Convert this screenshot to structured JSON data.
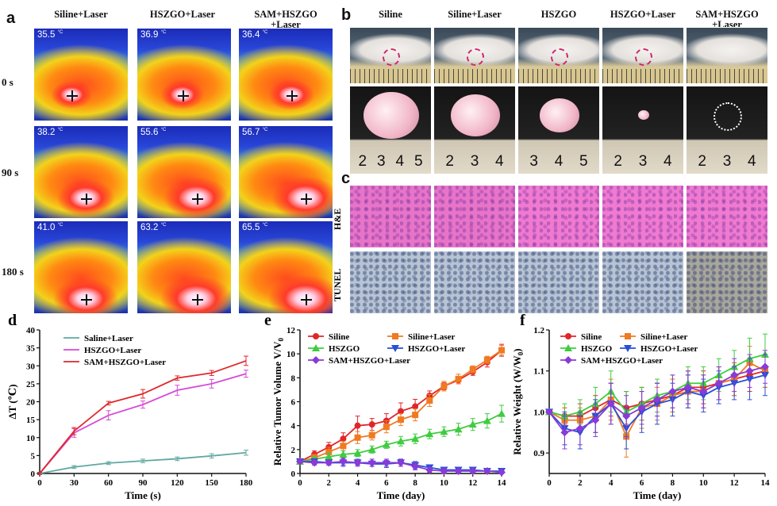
{
  "panel_a": {
    "letter": "a",
    "columns": [
      "Siline+Laser",
      "HSZGO+Laser",
      "SAM+HSZGO +Laser"
    ],
    "rows": [
      "0 s",
      "90 s",
      "180 s"
    ],
    "temps": [
      [
        "35.5",
        "36.9",
        "36.4"
      ],
      [
        "38.2",
        "55.6",
        "56.7"
      ],
      [
        "41.0",
        "63.2",
        "65.5"
      ]
    ],
    "unit": "°C"
  },
  "panel_b": {
    "letter": "b",
    "columns": [
      "Siline",
      "Siline+Laser",
      "HSZGO",
      "HSZGO+Laser",
      "SAM+HSZGO +Laser"
    ],
    "ruler_marks": [
      [
        "2",
        "3",
        "4",
        "5"
      ],
      [
        "2",
        "3",
        "4"
      ],
      [
        "3",
        "4",
        "5"
      ],
      [
        "2",
        "3",
        "4"
      ],
      [
        "2",
        "3",
        "4"
      ]
    ]
  },
  "panel_c": {
    "letter": "c",
    "rows": [
      "H&E",
      "TUNEL"
    ]
  },
  "chart_data": [
    {
      "panel": "d",
      "type": "line",
      "xlabel": "Time (s)",
      "ylabel": "ΔT (℃)",
      "x": [
        0,
        30,
        60,
        90,
        120,
        150,
        180
      ],
      "xticks": [
        "0",
        "30",
        "60",
        "90",
        "120",
        "150",
        "180"
      ],
      "yticks": [
        "0",
        "5",
        "10",
        "15",
        "20",
        "25",
        "30",
        "35",
        "40"
      ],
      "xlim": [
        0,
        180
      ],
      "ylim": [
        0,
        40
      ],
      "series": [
        {
          "name": "Saline+Laser",
          "color": "#5fa8a0",
          "values": [
            0,
            1.8,
            2.9,
            3.5,
            4.1,
            4.9,
            5.8
          ],
          "err": [
            0.2,
            0.4,
            0.4,
            0.5,
            0.5,
            0.6,
            0.7
          ]
        },
        {
          "name": "HSZGO+Laser",
          "color": "#d64ad6",
          "values": [
            0,
            11.3,
            16.2,
            19.2,
            23.2,
            25.0,
            27.8
          ],
          "err": [
            0.3,
            1.2,
            1.3,
            1.0,
            1.4,
            1.2,
            1.0
          ]
        },
        {
          "name": "SAM+HSZGO+Laser",
          "color": "#e0262a",
          "values": [
            0,
            11.8,
            19.6,
            22.2,
            26.6,
            28.0,
            31.4
          ],
          "err": [
            0.3,
            1.0,
            0.5,
            1.2,
            0.6,
            0.7,
            1.3
          ]
        }
      ]
    },
    {
      "panel": "e",
      "type": "line",
      "xlabel": "Time (day)",
      "ylabel": "Relative Tumor Volume V/V",
      "ylabel_sub": "0",
      "x": [
        0,
        1,
        2,
        3,
        4,
        5,
        6,
        7,
        8,
        9,
        10,
        11,
        12,
        13,
        14
      ],
      "xticks": [
        "0",
        "2",
        "4",
        "6",
        "8",
        "10",
        "12",
        "14"
      ],
      "yticks": [
        "0",
        "2",
        "4",
        "6",
        "8",
        "10",
        "12"
      ],
      "xlim": [
        0,
        14
      ],
      "ylim": [
        0,
        12
      ],
      "series": [
        {
          "name": "Siline",
          "color": "#e0262a",
          "marker": "circle",
          "values": [
            1.0,
            1.6,
            2.2,
            2.9,
            4.0,
            4.1,
            4.4,
            5.2,
            5.6,
            6.5,
            7.3,
            7.8,
            8.5,
            9.3,
            10.3
          ],
          "err": [
            0.1,
            0.3,
            0.4,
            0.5,
            0.8,
            0.5,
            0.6,
            0.7,
            0.6,
            0.4,
            0.3,
            0.3,
            0.3,
            0.4,
            0.5
          ]
        },
        {
          "name": "Siline+Laser",
          "color": "#f07a22",
          "marker": "square",
          "values": [
            1.0,
            1.3,
            1.8,
            2.3,
            3.0,
            3.2,
            3.9,
            4.5,
            4.9,
            6.1,
            7.3,
            7.9,
            8.7,
            9.5,
            10.3
          ],
          "err": [
            0.1,
            0.3,
            0.4,
            0.4,
            0.5,
            0.4,
            0.5,
            0.5,
            0.5,
            0.5,
            0.4,
            0.4,
            0.3,
            0.3,
            0.4
          ]
        },
        {
          "name": "HSZGO",
          "color": "#3fcc3f",
          "marker": "triangle",
          "values": [
            1.0,
            1.2,
            1.4,
            1.6,
            1.7,
            2.0,
            2.4,
            2.7,
            2.9,
            3.3,
            3.5,
            3.7,
            4.1,
            4.4,
            5.0
          ],
          "err": [
            0.1,
            0.2,
            0.3,
            0.3,
            0.3,
            0.3,
            0.3,
            0.4,
            0.4,
            0.4,
            0.4,
            0.5,
            0.5,
            0.6,
            0.7
          ]
        },
        {
          "name": "HSZGO+Laser",
          "color": "#2a4fd6",
          "marker": "tri-down",
          "values": [
            1.0,
            1.0,
            0.9,
            0.9,
            0.9,
            0.8,
            0.8,
            0.9,
            0.7,
            0.5,
            0.3,
            0.3,
            0.3,
            0.2,
            0.2
          ],
          "err": [
            0.1,
            0.2,
            0.2,
            0.3,
            0.2,
            0.2,
            0.3,
            0.3,
            0.3,
            0.2,
            0.2,
            0.1,
            0.1,
            0.1,
            0.1
          ]
        },
        {
          "name": "SAM+HSZGO+Laser",
          "color": "#8a3ad6",
          "marker": "diamond",
          "values": [
            1.0,
            0.9,
            0.9,
            1.0,
            0.9,
            0.9,
            0.9,
            0.9,
            0.6,
            0.3,
            0.2,
            0.2,
            0.2,
            0.2,
            0.1
          ],
          "err": [
            0.1,
            0.2,
            0.2,
            0.3,
            0.3,
            0.3,
            0.3,
            0.3,
            0.3,
            0.2,
            0.2,
            0.1,
            0.1,
            0.1,
            0.1
          ]
        }
      ]
    },
    {
      "panel": "f",
      "type": "line",
      "xlabel": "Time (day)",
      "ylabel": "Relative Weight (W/W",
      "ylabel_sub": "0",
      "ylabel_end": ")",
      "x": [
        0,
        1,
        2,
        3,
        4,
        5,
        6,
        7,
        8,
        9,
        10,
        11,
        12,
        13,
        14
      ],
      "xticks": [
        "0",
        "2",
        "4",
        "6",
        "8",
        "10",
        "12",
        "14"
      ],
      "yticks": [
        "0.9",
        "1.0",
        "1.1",
        "1.2"
      ],
      "xlim": [
        0,
        14
      ],
      "ylim": [
        0.85,
        1.2
      ],
      "series": [
        {
          "name": "Siline",
          "color": "#e0262a",
          "marker": "circle",
          "values": [
            1.0,
            0.99,
            0.99,
            1.01,
            1.03,
            1.01,
            1.02,
            1.03,
            1.04,
            1.06,
            1.06,
            1.07,
            1.08,
            1.09,
            1.1
          ],
          "err": [
            0.005,
            0.02,
            0.03,
            0.03,
            0.04,
            0.04,
            0.04,
            0.04,
            0.04,
            0.04,
            0.04,
            0.04,
            0.04,
            0.04,
            0.04
          ]
        },
        {
          "name": "Siline+Laser",
          "color": "#f07a22",
          "marker": "square",
          "values": [
            1.0,
            0.98,
            0.98,
            0.99,
            1.03,
            0.94,
            1.01,
            1.02,
            1.04,
            1.05,
            1.05,
            1.07,
            1.08,
            1.12,
            1.1
          ],
          "err": [
            0.005,
            0.03,
            0.03,
            0.04,
            0.05,
            0.05,
            0.05,
            0.04,
            0.04,
            0.04,
            0.04,
            0.04,
            0.04,
            0.04,
            0.04
          ]
        },
        {
          "name": "HSZGO",
          "color": "#3fcc3f",
          "marker": "triangle",
          "values": [
            1.0,
            0.99,
            1.0,
            1.02,
            1.05,
            1.0,
            1.02,
            1.04,
            1.05,
            1.07,
            1.07,
            1.09,
            1.11,
            1.13,
            1.14
          ],
          "err": [
            0.005,
            0.03,
            0.03,
            0.04,
            0.05,
            0.05,
            0.04,
            0.04,
            0.04,
            0.04,
            0.04,
            0.04,
            0.04,
            0.05,
            0.05
          ]
        },
        {
          "name": "HSZGO+Laser",
          "color": "#2a4fd6",
          "marker": "tri-down",
          "values": [
            1.0,
            0.96,
            0.95,
            0.99,
            1.02,
            0.96,
            1.0,
            1.02,
            1.03,
            1.05,
            1.04,
            1.06,
            1.07,
            1.08,
            1.09
          ],
          "err": [
            0.005,
            0.04,
            0.04,
            0.04,
            0.05,
            0.05,
            0.05,
            0.05,
            0.04,
            0.04,
            0.04,
            0.04,
            0.04,
            0.05,
            0.05
          ]
        },
        {
          "name": "SAM+HSZGO+Laser",
          "color": "#8a3ad6",
          "marker": "diamond",
          "values": [
            1.0,
            0.95,
            0.96,
            0.98,
            1.02,
            0.99,
            1.01,
            1.03,
            1.05,
            1.06,
            1.05,
            1.07,
            1.09,
            1.1,
            1.11
          ],
          "err": [
            0.005,
            0.04,
            0.04,
            0.04,
            0.05,
            0.05,
            0.04,
            0.04,
            0.04,
            0.04,
            0.04,
            0.04,
            0.04,
            0.04,
            0.04
          ]
        }
      ]
    }
  ]
}
